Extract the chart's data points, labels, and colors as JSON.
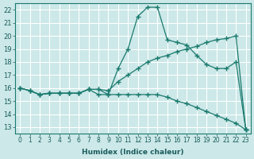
{
  "xlabel": "Humidex (Indice chaleur)",
  "ylabel": "",
  "bg_color": "#cce8e8",
  "grid_color": "#ffffff",
  "line_color": "#1a7a6e",
  "xlim": [
    -0.5,
    23.5
  ],
  "ylim": [
    12.5,
    22.5
  ],
  "xticks": [
    0,
    1,
    2,
    3,
    4,
    5,
    6,
    7,
    8,
    9,
    10,
    11,
    12,
    13,
    14,
    15,
    16,
    17,
    18,
    19,
    20,
    21,
    22,
    23
  ],
  "yticks": [
    13,
    14,
    15,
    16,
    17,
    18,
    19,
    20,
    21,
    22
  ],
  "line1_x": [
    0,
    1,
    2,
    3,
    4,
    5,
    6,
    7,
    8,
    9,
    10,
    11,
    12,
    13,
    14,
    15,
    16,
    17,
    18,
    19,
    20,
    21,
    22,
    23
  ],
  "line1_y": [
    16.0,
    15.8,
    15.5,
    15.6,
    15.6,
    15.6,
    15.6,
    15.9,
    15.9,
    15.5,
    17.5,
    19.0,
    21.5,
    22.2,
    22.2,
    19.7,
    19.5,
    19.3,
    18.5,
    17.8,
    17.5,
    17.5,
    18.0,
    12.8
  ],
  "line2_x": [
    0,
    1,
    2,
    3,
    4,
    5,
    6,
    7,
    8,
    9,
    10,
    11,
    12,
    13,
    14,
    15,
    16,
    17,
    18,
    19,
    20,
    21,
    22,
    23
  ],
  "line2_y": [
    16.0,
    15.8,
    15.5,
    15.6,
    15.6,
    15.6,
    15.6,
    15.9,
    15.9,
    15.8,
    16.5,
    17.0,
    17.5,
    18.0,
    18.3,
    18.5,
    18.8,
    19.0,
    19.2,
    19.5,
    19.7,
    19.8,
    20.0,
    12.8
  ],
  "line3_x": [
    0,
    1,
    2,
    3,
    4,
    5,
    6,
    7,
    8,
    9,
    10,
    11,
    12,
    13,
    14,
    15,
    16,
    17,
    18,
    19,
    20,
    21,
    22,
    23
  ],
  "line3_y": [
    16.0,
    15.8,
    15.5,
    15.6,
    15.6,
    15.6,
    15.6,
    15.9,
    15.5,
    15.5,
    15.5,
    15.5,
    15.5,
    15.5,
    15.5,
    15.3,
    15.0,
    14.8,
    14.5,
    14.2,
    13.9,
    13.6,
    13.3,
    12.8
  ]
}
